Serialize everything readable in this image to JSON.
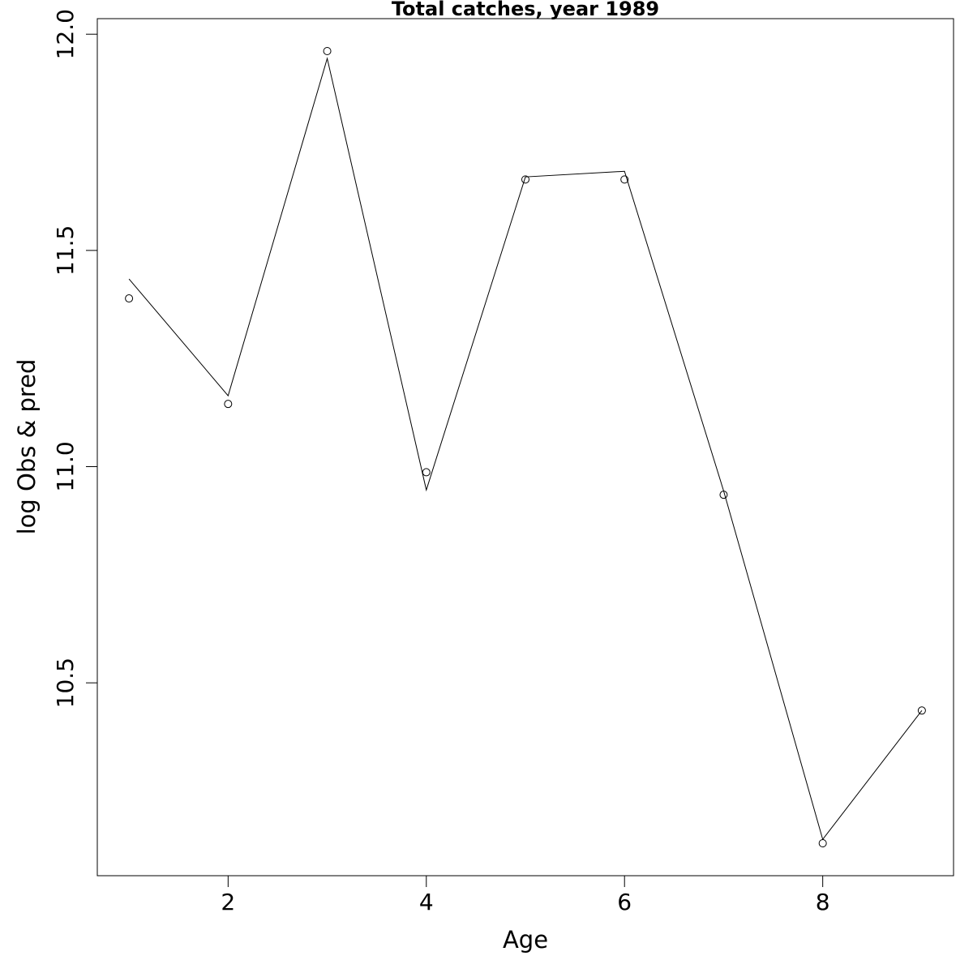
{
  "chart_data": {
    "type": "line",
    "title": "Total catches, year 1989",
    "x_label": "Age",
    "y_label": "log Obs & pred",
    "x": [
      1,
      2,
      3,
      4,
      5,
      6,
      7,
      8,
      9
    ],
    "series": [
      {
        "color": "#000000",
        "marker": "circle",
        "line": false,
        "values": [
          11.389,
          11.145,
          11.961,
          10.987,
          11.664,
          11.664,
          10.935,
          10.129,
          10.436
        ]
      },
      {
        "color": "#000000",
        "marker": "none",
        "line": true,
        "values": [
          11.434,
          11.164,
          11.944,
          10.946,
          11.67,
          11.683,
          10.944,
          10.138,
          10.436
        ]
      }
    ],
    "xlim": [
      0.68,
      9.32
    ],
    "ylim": [
      10.054,
      12.036
    ],
    "xticks": [
      2,
      4,
      6,
      8
    ],
    "yticks": [
      10.5,
      {
        "value": 11,
        "label": "11.0"
      },
      11.5,
      {
        "value": 12,
        "label": "12.0"
      }
    ],
    "grid": false
  }
}
